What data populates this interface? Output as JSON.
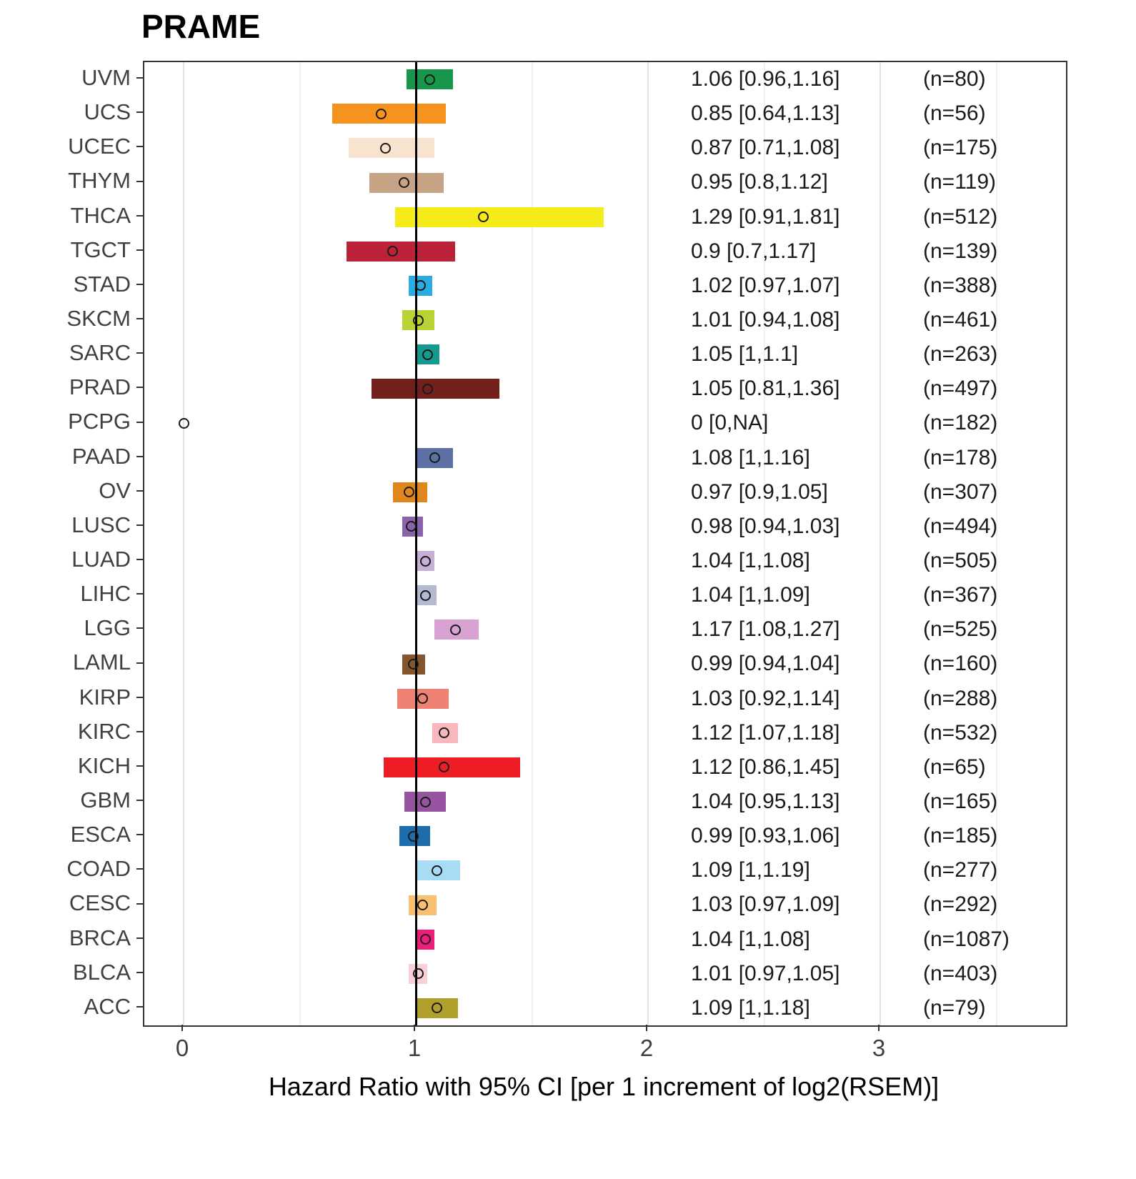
{
  "title": "PRAME",
  "xlabel": "Hazard Ratio with 95% CI [per 1 increment of log2(RSEM)]",
  "chart_data": {
    "type": "forest",
    "title": "PRAME",
    "xlabel": "Hazard Ratio with 95% CI [per 1 increment of log2(RSEM)]",
    "x_ticks": [
      0,
      1,
      2,
      3
    ],
    "x_minor_ticks": [
      0.5,
      1.5,
      2.5,
      3.5
    ],
    "xlim": [
      -0.17,
      3.8
    ],
    "reference_line": 1,
    "grid": true,
    "rows": [
      {
        "label": "UVM",
        "hr": 1.06,
        "lo": 0.96,
        "hi": 1.16,
        "ci_text": "1.06 [0.96,1.16]",
        "n_text": "(n=80)",
        "color": "#18964c"
      },
      {
        "label": "UCS",
        "hr": 0.85,
        "lo": 0.64,
        "hi": 1.13,
        "ci_text": "0.85 [0.64,1.13]",
        "n_text": "(n=56)",
        "color": "#f6921e"
      },
      {
        "label": "UCEC",
        "hr": 0.87,
        "lo": 0.71,
        "hi": 1.08,
        "ci_text": "0.87 [0.71,1.08]",
        "n_text": "(n=175)",
        "color": "#f8e3cf"
      },
      {
        "label": "THYM",
        "hr": 0.95,
        "lo": 0.8,
        "hi": 1.12,
        "ci_text": "0.95 [0.8,1.12]",
        "n_text": "(n=119)",
        "color": "#c6a385"
      },
      {
        "label": "THCA",
        "hr": 1.29,
        "lo": 0.91,
        "hi": 1.81,
        "ci_text": "1.29 [0.91,1.81]",
        "n_text": "(n=512)",
        "color": "#f5eb1b"
      },
      {
        "label": "TGCT",
        "hr": 0.9,
        "lo": 0.7,
        "hi": 1.17,
        "ci_text": "0.9 [0.7,1.17]",
        "n_text": "(n=139)",
        "color": "#bb2138"
      },
      {
        "label": "STAD",
        "hr": 1.02,
        "lo": 0.97,
        "hi": 1.07,
        "ci_text": "1.02 [0.97,1.07]",
        "n_text": "(n=388)",
        "color": "#2aabe2"
      },
      {
        "label": "SKCM",
        "hr": 1.01,
        "lo": 0.94,
        "hi": 1.08,
        "ci_text": "1.01 [0.94,1.08]",
        "n_text": "(n=461)",
        "color": "#b8d333"
      },
      {
        "label": "SARC",
        "hr": 1.05,
        "lo": 1.0,
        "hi": 1.1,
        "ci_text": "1.05 [1,1.1]",
        "n_text": "(n=263)",
        "color": "#149a8e"
      },
      {
        "label": "PRAD",
        "hr": 1.05,
        "lo": 0.81,
        "hi": 1.36,
        "ci_text": "1.05 [0.81,1.36]",
        "n_text": "(n=497)",
        "color": "#73201c"
      },
      {
        "label": "PCPG",
        "hr": 0.0,
        "lo": 0.0,
        "hi": 0.0,
        "ci_text": "0 [0,NA]",
        "n_text": "(n=182)",
        "color": null
      },
      {
        "label": "PAAD",
        "hr": 1.08,
        "lo": 1.0,
        "hi": 1.16,
        "ci_text": "1.08 [1,1.16]",
        "n_text": "(n=178)",
        "color": "#5e71a7"
      },
      {
        "label": "OV",
        "hr": 0.97,
        "lo": 0.9,
        "hi": 1.05,
        "ci_text": "0.97 [0.9,1.05]",
        "n_text": "(n=307)",
        "color": "#df861d"
      },
      {
        "label": "LUSC",
        "hr": 0.98,
        "lo": 0.94,
        "hi": 1.03,
        "ci_text": "0.98 [0.94,1.03]",
        "n_text": "(n=494)",
        "color": "#8a64aa"
      },
      {
        "label": "LUAD",
        "hr": 1.04,
        "lo": 1.0,
        "hi": 1.08,
        "ci_text": "1.04 [1,1.08]",
        "n_text": "(n=505)",
        "color": "#c8afd8"
      },
      {
        "label": "LIHC",
        "hr": 1.04,
        "lo": 1.0,
        "hi": 1.09,
        "ci_text": "1.04 [1,1.09]",
        "n_text": "(n=367)",
        "color": "#b4bad2"
      },
      {
        "label": "LGG",
        "hr": 1.17,
        "lo": 1.08,
        "hi": 1.27,
        "ci_text": "1.17 [1.08,1.27]",
        "n_text": "(n=525)",
        "color": "#d8a2d2"
      },
      {
        "label": "LAML",
        "hr": 0.99,
        "lo": 0.94,
        "hi": 1.04,
        "ci_text": "0.99 [0.94,1.04]",
        "n_text": "(n=160)",
        "color": "#85562d"
      },
      {
        "label": "KIRP",
        "hr": 1.03,
        "lo": 0.92,
        "hi": 1.14,
        "ci_text": "1.03 [0.92,1.14]",
        "n_text": "(n=288)",
        "color": "#ee8172"
      },
      {
        "label": "KIRC",
        "hr": 1.12,
        "lo": 1.07,
        "hi": 1.18,
        "ci_text": "1.12 [1.07,1.18]",
        "n_text": "(n=532)",
        "color": "#f8b7bd"
      },
      {
        "label": "KICH",
        "hr": 1.12,
        "lo": 0.86,
        "hi": 1.45,
        "ci_text": "1.12 [0.86,1.45]",
        "n_text": "(n=65)",
        "color": "#ee1d25"
      },
      {
        "label": "GBM",
        "hr": 1.04,
        "lo": 0.95,
        "hi": 1.13,
        "ci_text": "1.04 [0.95,1.13]",
        "n_text": "(n=165)",
        "color": "#9553a0"
      },
      {
        "label": "ESCA",
        "hr": 0.99,
        "lo": 0.93,
        "hi": 1.06,
        "ci_text": "0.99 [0.93,1.06]",
        "n_text": "(n=185)",
        "color": "#1d6cab"
      },
      {
        "label": "COAD",
        "hr": 1.09,
        "lo": 1.0,
        "hi": 1.19,
        "ci_text": "1.09 [1,1.19]",
        "n_text": "(n=277)",
        "color": "#a8dcf5"
      },
      {
        "label": "CESC",
        "hr": 1.03,
        "lo": 0.97,
        "hi": 1.09,
        "ci_text": "1.03 [0.97,1.09]",
        "n_text": "(n=292)",
        "color": "#f9c06f"
      },
      {
        "label": "BRCA",
        "hr": 1.04,
        "lo": 1.0,
        "hi": 1.08,
        "ci_text": "1.04 [1,1.08]",
        "n_text": "(n=1087)",
        "color": "#ed1e79"
      },
      {
        "label": "BLCA",
        "hr": 1.01,
        "lo": 0.97,
        "hi": 1.05,
        "ci_text": "1.01 [0.97,1.05]",
        "n_text": "(n=403)",
        "color": "#f9d0d8"
      },
      {
        "label": "ACC",
        "hr": 1.09,
        "lo": 1.0,
        "hi": 1.18,
        "ci_text": "1.09 [1,1.18]",
        "n_text": "(n=79)",
        "color": "#b2a02c"
      }
    ]
  }
}
